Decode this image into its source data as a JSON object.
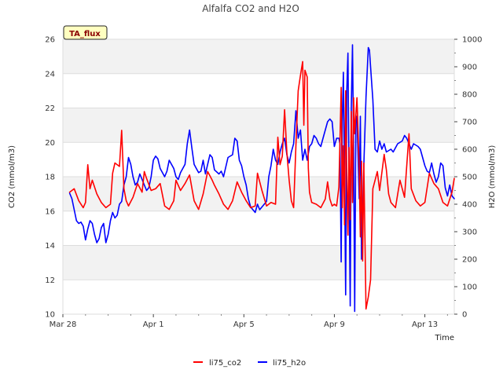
{
  "chart_data": {
    "type": "line",
    "title": "Alfalfa CO2 and H2O",
    "badge": "TA_flux",
    "xlabel": "Time",
    "ylabel_left": "CO2 (mmol/m3)",
    "ylabel_right": "H2O (mmol/m3)",
    "ylim_left": [
      10,
      26
    ],
    "ylim_right": [
      0,
      1000
    ],
    "xlim": [
      0,
      17.3
    ],
    "x_unit": "days since Mar 28",
    "left_ticks": [
      10,
      12,
      14,
      16,
      18,
      20,
      22,
      24,
      26
    ],
    "right_ticks": [
      0,
      100,
      200,
      300,
      400,
      500,
      600,
      700,
      800,
      900,
      1000
    ],
    "x_ticks": [
      {
        "value": 0,
        "label": "Mar 28"
      },
      {
        "value": 4,
        "label": "Apr 1"
      },
      {
        "value": 8,
        "label": "Apr 5"
      },
      {
        "value": 12,
        "label": "Apr 9"
      },
      {
        "value": 16,
        "label": "Apr 13"
      }
    ],
    "grid": true,
    "legend_position": "bottom-center",
    "colors": {
      "co2": "#ff0000",
      "h2o": "#0000ff",
      "band": "#f2f2f2",
      "grid": "#dddddd",
      "badge_bg": "#ffffc0"
    },
    "series": [
      {
        "name": "li75_co2",
        "axis": "left",
        "points": [
          [
            0.3,
            17.1
          ],
          [
            0.5,
            17.3
          ],
          [
            0.7,
            16.6
          ],
          [
            0.9,
            16.2
          ],
          [
            1.0,
            16.5
          ],
          [
            1.1,
            18.7
          ],
          [
            1.2,
            17.3
          ],
          [
            1.3,
            17.8
          ],
          [
            1.5,
            17.0
          ],
          [
            1.7,
            16.5
          ],
          [
            1.9,
            16.2
          ],
          [
            2.1,
            16.4
          ],
          [
            2.2,
            18.2
          ],
          [
            2.3,
            18.8
          ],
          [
            2.5,
            18.6
          ],
          [
            2.6,
            20.7
          ],
          [
            2.7,
            17.3
          ],
          [
            2.8,
            16.6
          ],
          [
            2.9,
            16.3
          ],
          [
            3.1,
            16.8
          ],
          [
            3.3,
            17.6
          ],
          [
            3.5,
            17.1
          ],
          [
            3.6,
            18.3
          ],
          [
            3.7,
            17.9
          ],
          [
            3.9,
            17.2
          ],
          [
            4.1,
            17.3
          ],
          [
            4.3,
            17.6
          ],
          [
            4.5,
            16.3
          ],
          [
            4.7,
            16.1
          ],
          [
            4.9,
            16.6
          ],
          [
            5.0,
            17.8
          ],
          [
            5.2,
            17.2
          ],
          [
            5.4,
            17.6
          ],
          [
            5.6,
            18.1
          ],
          [
            5.8,
            16.6
          ],
          [
            6.0,
            16.1
          ],
          [
            6.2,
            17.0
          ],
          [
            6.4,
            18.3
          ],
          [
            6.6,
            17.8
          ],
          [
            6.7,
            17.5
          ],
          [
            6.9,
            17.0
          ],
          [
            7.1,
            16.4
          ],
          [
            7.3,
            16.1
          ],
          [
            7.5,
            16.6
          ],
          [
            7.7,
            17.7
          ],
          [
            7.9,
            17.1
          ],
          [
            8.1,
            16.6
          ],
          [
            8.3,
            16.2
          ],
          [
            8.5,
            16.3
          ],
          [
            8.6,
            18.2
          ],
          [
            8.8,
            17.2
          ],
          [
            9.0,
            16.3
          ],
          [
            9.2,
            16.5
          ],
          [
            9.4,
            16.4
          ],
          [
            9.5,
            20.3
          ],
          [
            9.6,
            18.7
          ],
          [
            9.7,
            19.2
          ],
          [
            9.8,
            21.9
          ],
          [
            9.9,
            19.4
          ],
          [
            10.0,
            17.8
          ],
          [
            10.1,
            16.6
          ],
          [
            10.2,
            16.2
          ],
          [
            10.3,
            19.8
          ],
          [
            10.4,
            23.0
          ],
          [
            10.5,
            23.9
          ],
          [
            10.6,
            24.7
          ],
          [
            10.65,
            21.0
          ],
          [
            10.7,
            24.2
          ],
          [
            10.8,
            23.8
          ],
          [
            10.85,
            18.5
          ],
          [
            10.9,
            17.1
          ],
          [
            11.0,
            16.5
          ],
          [
            11.2,
            16.4
          ],
          [
            11.4,
            16.2
          ],
          [
            11.6,
            16.7
          ],
          [
            11.7,
            17.7
          ],
          [
            11.8,
            16.7
          ],
          [
            11.9,
            16.3
          ],
          [
            12.0,
            16.4
          ],
          [
            12.1,
            16.3
          ],
          [
            12.2,
            17.4
          ],
          [
            12.3,
            23.2
          ],
          [
            12.35,
            16.2
          ],
          [
            12.4,
            19.8
          ],
          [
            12.45,
            15.2
          ],
          [
            12.5,
            23.0
          ],
          [
            12.55,
            18.0
          ],
          [
            12.6,
            14.6
          ],
          [
            12.65,
            19.7
          ],
          [
            12.7,
            15.5
          ],
          [
            12.75,
            21.8
          ],
          [
            12.8,
            16.5
          ],
          [
            12.85,
            22.6
          ],
          [
            12.9,
            20.5
          ],
          [
            13.0,
            22.6
          ],
          [
            13.1,
            18.3
          ],
          [
            13.15,
            14.5
          ],
          [
            13.2,
            18.9
          ],
          [
            13.25,
            13.1
          ],
          [
            13.3,
            18.8
          ],
          [
            13.4,
            10.3
          ],
          [
            13.5,
            11.0
          ],
          [
            13.6,
            12.0
          ],
          [
            13.7,
            17.3
          ],
          [
            13.9,
            18.3
          ],
          [
            14.0,
            17.2
          ],
          [
            14.2,
            19.3
          ],
          [
            14.3,
            18.4
          ],
          [
            14.4,
            17.0
          ],
          [
            14.5,
            16.5
          ],
          [
            14.7,
            16.2
          ],
          [
            14.9,
            17.8
          ],
          [
            15.1,
            16.8
          ],
          [
            15.3,
            20.5
          ],
          [
            15.4,
            17.3
          ],
          [
            15.6,
            16.6
          ],
          [
            15.8,
            16.3
          ],
          [
            16.0,
            16.5
          ],
          [
            16.2,
            18.2
          ],
          [
            16.4,
            17.6
          ],
          [
            16.6,
            17.3
          ],
          [
            16.8,
            16.5
          ],
          [
            17.0,
            16.3
          ],
          [
            17.2,
            17.1
          ],
          [
            17.3,
            17.9
          ]
        ]
      },
      {
        "name": "li75_h2o",
        "axis": "right",
        "points": [
          [
            0.3,
            440
          ],
          [
            0.4,
            420
          ],
          [
            0.5,
            380
          ],
          [
            0.6,
            340
          ],
          [
            0.7,
            330
          ],
          [
            0.8,
            335
          ],
          [
            0.9,
            320
          ],
          [
            1.0,
            270
          ],
          [
            1.1,
            310
          ],
          [
            1.2,
            340
          ],
          [
            1.3,
            330
          ],
          [
            1.4,
            290
          ],
          [
            1.5,
            260
          ],
          [
            1.6,
            275
          ],
          [
            1.7,
            315
          ],
          [
            1.8,
            330
          ],
          [
            1.9,
            260
          ],
          [
            2.0,
            290
          ],
          [
            2.1,
            340
          ],
          [
            2.2,
            370
          ],
          [
            2.3,
            350
          ],
          [
            2.4,
            360
          ],
          [
            2.5,
            400
          ],
          [
            2.6,
            410
          ],
          [
            2.7,
            470
          ],
          [
            2.8,
            500
          ],
          [
            2.9,
            570
          ],
          [
            3.0,
            545
          ],
          [
            3.1,
            500
          ],
          [
            3.2,
            470
          ],
          [
            3.3,
            480
          ],
          [
            3.4,
            510
          ],
          [
            3.5,
            490
          ],
          [
            3.6,
            470
          ],
          [
            3.7,
            450
          ],
          [
            3.8,
            460
          ],
          [
            3.9,
            500
          ],
          [
            4.0,
            560
          ],
          [
            4.1,
            575
          ],
          [
            4.2,
            565
          ],
          [
            4.3,
            530
          ],
          [
            4.5,
            500
          ],
          [
            4.6,
            520
          ],
          [
            4.7,
            560
          ],
          [
            4.8,
            545
          ],
          [
            4.9,
            530
          ],
          [
            5.0,
            500
          ],
          [
            5.1,
            490
          ],
          [
            5.2,
            515
          ],
          [
            5.4,
            545
          ],
          [
            5.5,
            620
          ],
          [
            5.6,
            670
          ],
          [
            5.7,
            605
          ],
          [
            5.8,
            545
          ],
          [
            5.9,
            530
          ],
          [
            6.0,
            515
          ],
          [
            6.1,
            520
          ],
          [
            6.2,
            560
          ],
          [
            6.3,
            510
          ],
          [
            6.4,
            545
          ],
          [
            6.5,
            580
          ],
          [
            6.6,
            570
          ],
          [
            6.7,
            525
          ],
          [
            6.9,
            510
          ],
          [
            7.0,
            520
          ],
          [
            7.1,
            500
          ],
          [
            7.3,
            570
          ],
          [
            7.5,
            580
          ],
          [
            7.6,
            640
          ],
          [
            7.7,
            630
          ],
          [
            7.8,
            560
          ],
          [
            7.9,
            540
          ],
          [
            8.0,
            500
          ],
          [
            8.1,
            470
          ],
          [
            8.2,
            420
          ],
          [
            8.3,
            390
          ],
          [
            8.4,
            380
          ],
          [
            8.5,
            370
          ],
          [
            8.6,
            400
          ],
          [
            8.7,
            380
          ],
          [
            8.8,
            390
          ],
          [
            9.0,
            410
          ],
          [
            9.1,
            500
          ],
          [
            9.2,
            540
          ],
          [
            9.3,
            600
          ],
          [
            9.4,
            560
          ],
          [
            9.5,
            545
          ],
          [
            9.6,
            590
          ],
          [
            9.7,
            620
          ],
          [
            9.8,
            640
          ],
          [
            9.9,
            580
          ],
          [
            10.0,
            550
          ],
          [
            10.1,
            590
          ],
          [
            10.2,
            620
          ],
          [
            10.3,
            740
          ],
          [
            10.4,
            640
          ],
          [
            10.5,
            670
          ],
          [
            10.6,
            560
          ],
          [
            10.7,
            600
          ],
          [
            10.8,
            560
          ],
          [
            10.9,
            610
          ],
          [
            11.0,
            620
          ],
          [
            11.1,
            650
          ],
          [
            11.2,
            640
          ],
          [
            11.3,
            620
          ],
          [
            11.4,
            610
          ],
          [
            11.5,
            640
          ],
          [
            11.6,
            670
          ],
          [
            11.7,
            700
          ],
          [
            11.8,
            710
          ],
          [
            11.9,
            700
          ],
          [
            12.0,
            610
          ],
          [
            12.1,
            640
          ],
          [
            12.2,
            640
          ],
          [
            12.25,
            620
          ],
          [
            12.3,
            190
          ],
          [
            12.35,
            700
          ],
          [
            12.4,
            880
          ],
          [
            12.45,
            500
          ],
          [
            12.5,
            70
          ],
          [
            12.55,
            820
          ],
          [
            12.6,
            950
          ],
          [
            12.65,
            500
          ],
          [
            12.7,
            30
          ],
          [
            12.75,
            760
          ],
          [
            12.8,
            980
          ],
          [
            12.85,
            600
          ],
          [
            12.9,
            10
          ],
          [
            12.95,
            700
          ],
          [
            13.0,
            720
          ],
          [
            13.05,
            560
          ],
          [
            13.1,
            420
          ],
          [
            13.15,
            720
          ],
          [
            13.2,
            200
          ],
          [
            13.3,
            540
          ],
          [
            13.4,
            790
          ],
          [
            13.5,
            970
          ],
          [
            13.55,
            960
          ],
          [
            13.6,
            900
          ],
          [
            13.7,
            780
          ],
          [
            13.8,
            600
          ],
          [
            13.9,
            590
          ],
          [
            14.0,
            630
          ],
          [
            14.1,
            600
          ],
          [
            14.2,
            620
          ],
          [
            14.3,
            590
          ],
          [
            14.5,
            600
          ],
          [
            14.6,
            590
          ],
          [
            14.8,
            620
          ],
          [
            15.0,
            630
          ],
          [
            15.1,
            650
          ],
          [
            15.2,
            640
          ],
          [
            15.3,
            620
          ],
          [
            15.4,
            600
          ],
          [
            15.5,
            620
          ],
          [
            15.7,
            610
          ],
          [
            15.8,
            600
          ],
          [
            15.9,
            570
          ],
          [
            16.0,
            540
          ],
          [
            16.1,
            520
          ],
          [
            16.2,
            515
          ],
          [
            16.3,
            550
          ],
          [
            16.4,
            510
          ],
          [
            16.5,
            480
          ],
          [
            16.6,
            500
          ],
          [
            16.7,
            550
          ],
          [
            16.8,
            540
          ],
          [
            16.9,
            460
          ],
          [
            17.0,
            430
          ],
          [
            17.1,
            470
          ],
          [
            17.2,
            430
          ],
          [
            17.3,
            420
          ]
        ]
      }
    ]
  }
}
